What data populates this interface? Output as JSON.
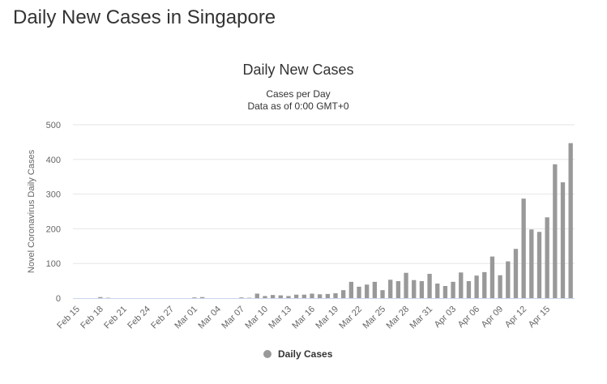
{
  "page": {
    "heading": "Daily New Cases in Singapore"
  },
  "chart_data": {
    "type": "bar",
    "title": "Daily New Cases",
    "subtitle": [
      "Cases per Day",
      "Data as of 0:00 GMT+0"
    ],
    "ylabel": "Novel Coronavirus Daily Cases",
    "xlabel": "",
    "ylim": [
      0,
      500
    ],
    "yticks": [
      0,
      100,
      200,
      300,
      400,
      500
    ],
    "grid": true,
    "legend_position": "bottom-center",
    "bar_color": "#999999",
    "series": [
      {
        "name": "Daily Cases",
        "values": [
          0,
          0,
          0,
          3,
          1,
          0,
          0,
          0,
          0,
          0,
          0,
          0,
          0,
          0,
          0,
          2,
          3,
          0,
          0,
          0,
          0,
          2,
          1,
          13,
          6,
          9,
          8,
          6,
          10,
          10,
          13,
          11,
          12,
          14,
          23,
          47,
          33,
          39,
          47,
          23,
          53,
          49,
          73,
          52,
          49,
          70,
          42,
          35,
          47,
          74,
          49,
          65,
          75,
          120,
          66,
          106,
          142,
          287,
          198,
          191,
          233,
          386,
          334,
          447
        ]
      }
    ],
    "categories": [
      "Feb 15",
      "Feb 16",
      "Feb 17",
      "Feb 18",
      "Feb 19",
      "Feb 20",
      "Feb 21",
      "Feb 22",
      "Feb 23",
      "Feb 24",
      "Feb 25",
      "Feb 26",
      "Feb 27",
      "Feb 28",
      "Feb 29",
      "Mar 01",
      "Mar 02",
      "Mar 03",
      "Mar 04",
      "Mar 05",
      "Mar 06",
      "Mar 07",
      "Mar 08",
      "Mar 09",
      "Mar 10",
      "Mar 11",
      "Mar 12",
      "Mar 13",
      "Mar 14",
      "Mar 15",
      "Mar 16",
      "Mar 17",
      "Mar 18",
      "Mar 19",
      "Mar 20",
      "Mar 21",
      "Mar 22",
      "Mar 23",
      "Mar 24",
      "Mar 25",
      "Mar 26",
      "Mar 27",
      "Mar 28",
      "Mar 29",
      "Mar 30",
      "Mar 31",
      "Apr 01",
      "Apr 02",
      "Apr 03",
      "Apr 04",
      "Apr 05",
      "Apr 06",
      "Apr 07",
      "Apr 08",
      "Apr 09",
      "Apr 10",
      "Apr 11",
      "Apr 12",
      "Apr 13",
      "Apr 14",
      "Apr 15",
      "Apr 16",
      "Apr 17",
      "Apr 18"
    ],
    "x_tick_labels": [
      "Feb 15",
      "Feb 18",
      "Feb 21",
      "Feb 24",
      "Feb 27",
      "Mar 01",
      "Mar 04",
      "Mar 07",
      "Mar 10",
      "Mar 13",
      "Mar 16",
      "Mar 19",
      "Mar 22",
      "Mar 25",
      "Mar 28",
      "Mar 31",
      "Apr 03",
      "Apr 06",
      "Apr 09",
      "Apr 12",
      "Apr 15"
    ]
  }
}
